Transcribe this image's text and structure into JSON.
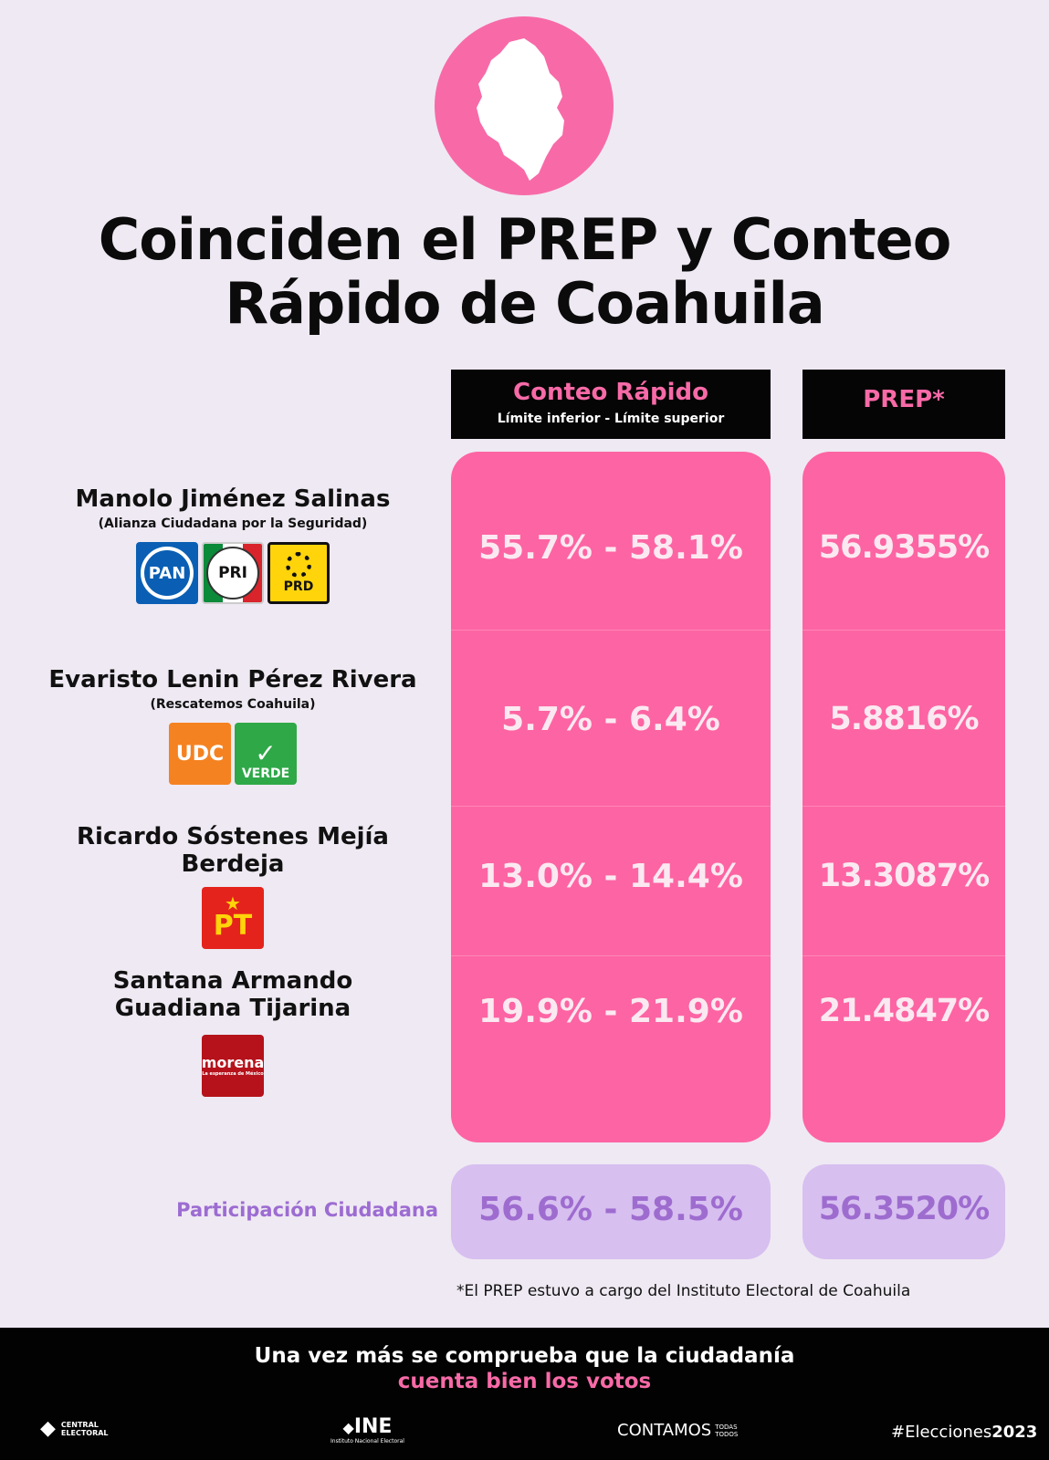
{
  "title": {
    "line1": "Coinciden el PREP y Conteo",
    "line2": "Rápido de Coahuila"
  },
  "headers": {
    "conteo_title": "Conteo Rápido",
    "conteo_sub": "Límite inferior - Límite superior",
    "prep_title": "PREP*"
  },
  "candidates": [
    {
      "name": "Manolo Jiménez Salinas",
      "coalition": "(Alianza Ciudadana por la Seguridad)",
      "parties": [
        "PAN",
        "PRI",
        "PRD"
      ],
      "conteo": "55.7% - 58.1%",
      "prep": "56.9355%"
    },
    {
      "name": "Evaristo Lenin Pérez Rivera",
      "coalition": "(Rescatemos Coahuila)",
      "parties": [
        "UDC",
        "VERDE"
      ],
      "conteo": "5.7% - 6.4%",
      "prep": "5.8816%"
    },
    {
      "name": "Ricardo Sóstenes Mejía Berdeja",
      "coalition": "",
      "parties": [
        "PT"
      ],
      "conteo": "13.0% - 14.4%",
      "prep": "13.3087%"
    },
    {
      "name_line1": "Santana Armando",
      "name_line2": "Guadiana Tijarina",
      "coalition": "",
      "parties": [
        "morena"
      ],
      "party_tagline": "La esperanza de México",
      "conteo": "19.9% - 21.9%",
      "prep": "21.4847%"
    }
  ],
  "participation": {
    "label": "Participación Ciudadana",
    "conteo": "56.6% - 58.5%",
    "prep": "56.3520%"
  },
  "footnote": "*El PREP estuvo a cargo del Instituto Electoral de Coahuila",
  "footer": {
    "line1": "Una vez más se comprueba que la ciudadanía",
    "line2": "cuenta bien los votos",
    "logo1": "CENTRAL ELECTORAL",
    "logo2": "INE",
    "logo2_sub": "Instituto Nacional Electoral",
    "logo3": "CONTAMOS",
    "logo3_sub": "TODAS TODOS",
    "hashtag_a": "#Elecciones",
    "hashtag_b": "2023"
  },
  "colors": {
    "pink": "#fd64a3",
    "lavender": "#d7bff0",
    "purple_text": "#9c6cd2",
    "black": "#050505",
    "background": "#efe9f3"
  }
}
